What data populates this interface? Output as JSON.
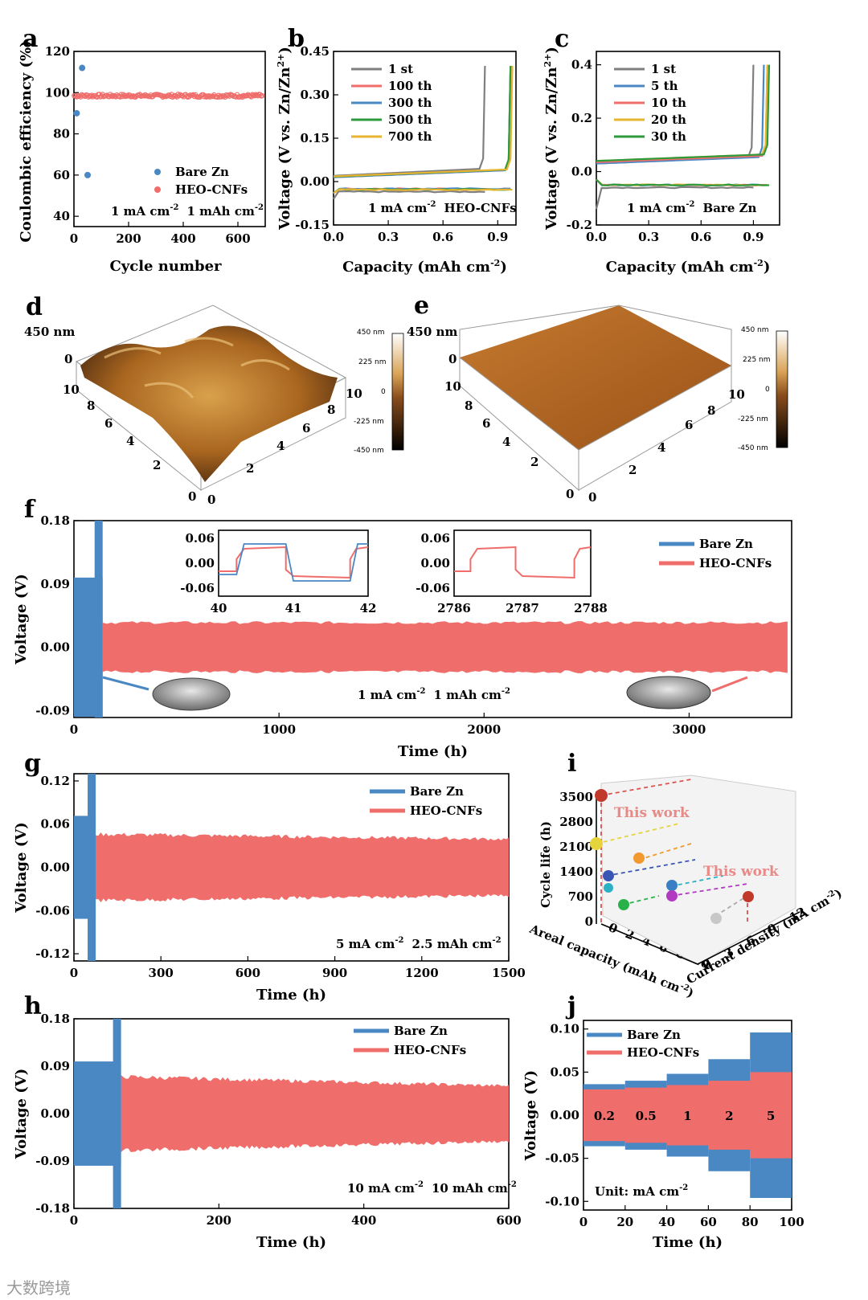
{
  "colors": {
    "bare": "#4a88c4",
    "heo": "#ef6d6a",
    "grey": "#7f7f7f",
    "green": "#2e9a3e",
    "yellow": "#e7b52f",
    "afm_dark": "#4b2a10",
    "afm_mid": "#a7642a",
    "afm_light": "#d9a356"
  },
  "panel_labels": [
    "a",
    "b",
    "c",
    "d",
    "e",
    "f",
    "g",
    "h",
    "i",
    "j"
  ],
  "legend": {
    "bare": "Bare Zn",
    "heo": "HEO-CNFs"
  },
  "chart_data": [
    {
      "id": "a",
      "type": "scatter",
      "xlabel": "Cycle number",
      "ylabel": "Coulombic efficiency (%)",
      "xlim": [
        0,
        700
      ],
      "ylim": [
        35,
        120
      ],
      "xticks": [
        "0",
        "200",
        "400",
        "600"
      ],
      "yticks": [
        "40",
        "60",
        "80",
        "100",
        "120"
      ],
      "condition": [
        "1 mA cm",
        "-2",
        "1 mAh cm",
        "-2"
      ],
      "series": [
        {
          "name": "Bare Zn",
          "points": [
            [
              10,
              90
            ],
            [
              30,
              112
            ],
            [
              50,
              60
            ]
          ]
        },
        {
          "name": "HEO-CNFs",
          "values_from": 1,
          "values_to": 690,
          "value_range": [
            97,
            99
          ]
        }
      ]
    },
    {
      "id": "b",
      "type": "line",
      "xlabel": "Capacity (mAh cm",
      "xlabel_sup": "-2",
      "xlabel_end": ")",
      "ylabel": "Voltage (V vs. Zn/Zn",
      "ylabel_sup": "2+",
      "ylabel_end": ")",
      "xlim": [
        0,
        1.0
      ],
      "ylim": [
        -0.15,
        0.45
      ],
      "xticks": [
        "0.0",
        "0.3",
        "0.6",
        "0.9"
      ],
      "yticks": [
        "-0.15",
        "0.00",
        "0.15",
        "0.30",
        "0.45"
      ],
      "annotation": [
        "1 mA cm",
        "-2",
        "HEO-CNFs"
      ],
      "series": [
        {
          "name": "1 st",
          "end": 0.83
        },
        {
          "name": "100 th",
          "end": 0.97
        },
        {
          "name": "300 th",
          "end": 0.97
        },
        {
          "name": "500 th",
          "end": 0.97
        },
        {
          "name": "700 th",
          "end": 0.98
        }
      ]
    },
    {
      "id": "c",
      "type": "line",
      "xlabel": "Capacity (mAh cm",
      "xlabel_sup": "-2",
      "xlabel_end": ")",
      "ylabel": "Voltage (V vs. Zn/Zn",
      "ylabel_sup": "2+",
      "ylabel_end": ")",
      "xlim": [
        0,
        1.05
      ],
      "ylim": [
        -0.2,
        0.45
      ],
      "xticks": [
        "0.0",
        "0.3",
        "0.6",
        "0.9"
      ],
      "yticks": [
        "-0.2",
        "0.0",
        "0.2",
        "0.4"
      ],
      "annotation": [
        "1 mA cm",
        "-2",
        "Bare Zn"
      ],
      "series": [
        {
          "name": "1 st",
          "end": 0.9
        },
        {
          "name": "5 th",
          "end": 0.96
        },
        {
          "name": "10 th",
          "end": 0.98
        },
        {
          "name": "20 th",
          "end": 0.98
        },
        {
          "name": "30 th",
          "end": 0.99
        }
      ]
    },
    {
      "id": "f",
      "type": "area",
      "xlabel": "Time (h)",
      "ylabel": "Voltage (V)",
      "xlim": [
        0,
        3500
      ],
      "ylim": [
        -0.1,
        0.18
      ],
      "xticks": [
        "0",
        "1000",
        "2000",
        "3000"
      ],
      "yticks": [
        "-0.09",
        "0.00",
        "0.09",
        "0.18"
      ],
      "condition": [
        "1 mA cm",
        "-2",
        "1 mAh cm",
        "-2"
      ],
      "inset1": {
        "xticks": [
          "40",
          "41",
          "42"
        ],
        "yticks": [
          "0.06",
          "0.00",
          "-0.06"
        ]
      },
      "inset2": {
        "xticks": [
          "2786",
          "2787",
          "2788"
        ],
        "yticks": [
          "0.06",
          "0.00",
          "-0.06"
        ]
      },
      "series": [
        {
          "name": "Bare Zn",
          "end_time": 140,
          "amplitude": 0.18
        },
        {
          "name": "HEO-CNFs",
          "end_time": 3480,
          "amplitude": 0.035
        }
      ]
    },
    {
      "id": "g",
      "type": "area",
      "xlabel": "Time (h)",
      "ylabel": "Voltage (V)",
      "xlim": [
        0,
        1500
      ],
      "ylim": [
        -0.13,
        0.13
      ],
      "xticks": [
        "0",
        "300",
        "600",
        "900",
        "1200",
        "1500"
      ],
      "yticks": [
        "0.12",
        "0.06",
        "0.00",
        "-0.06",
        "-0.12"
      ],
      "condition": [
        "5 mA cm",
        "-2",
        "2.5 mAh cm",
        "-2"
      ],
      "series": [
        {
          "name": "Bare Zn",
          "end_time": 75,
          "amplitude": 0.13
        },
        {
          "name": "HEO-CNFs",
          "end_time": 1500,
          "amplitude": 0.046
        }
      ]
    },
    {
      "id": "h",
      "type": "area",
      "xlabel": "Time (h)",
      "ylabel": "Voltage (V)",
      "xlim": [
        0,
        600
      ],
      "ylim": [
        -0.18,
        0.18
      ],
      "xticks": [
        "0",
        "200",
        "400",
        "600"
      ],
      "yticks": [
        "0.18",
        "0.09",
        "0.00",
        "-0.09",
        "-0.18"
      ],
      "condition": [
        "10 mA cm",
        "-2",
        "10 mAh cm",
        "-2"
      ],
      "series": [
        {
          "name": "Bare Zn",
          "end_time": 65,
          "amplitude": 0.18
        },
        {
          "name": "HEO-CNFs",
          "end_time": 600,
          "amplitude": 0.07
        }
      ]
    },
    {
      "id": "i",
      "type": "scatter",
      "xlabel": "Areal capacity (mAh cm",
      "xlabel_sup": "-2",
      "xlabel_end": ")",
      "ylabel": "Cycle life (h)",
      "zlabel": "Current density (mA cm",
      "zlabel_sup": "-2",
      "zlabel_end": ")",
      "yticks": [
        "0",
        "700",
        "1400",
        "2100",
        "2800",
        "3500"
      ],
      "xticks": [
        "0",
        "2",
        "4",
        "6",
        "8",
        "10"
      ],
      "zticks": [
        "0",
        "3",
        "6",
        "9",
        "12"
      ],
      "callouts": [
        "This work",
        "This work"
      ]
    },
    {
      "id": "j",
      "type": "area",
      "xlabel": "Time (h)",
      "ylabel": "Voltage (V)",
      "xlim": [
        0,
        100
      ],
      "ylim": [
        -0.11,
        0.11
      ],
      "xticks": [
        "0",
        "20",
        "40",
        "60",
        "80",
        "100"
      ],
      "yticks": [
        "0.10",
        "0.05",
        "0.00",
        "-0.05",
        "-0.10"
      ],
      "rates": [
        "0.2",
        "0.5",
        "1",
        "2",
        "5"
      ],
      "unit": [
        "Unit: mA cm",
        "-2"
      ]
    }
  ],
  "afm": {
    "d": {
      "zscale": "450 nm",
      "ticks": [
        "450 nm",
        "225 nm",
        "0",
        "-225 nm",
        "-450 nm"
      ],
      "axis_z": [
        "0"
      ],
      "axis_xy": [
        "10",
        "8",
        "6",
        "4",
        "2",
        "0",
        "0",
        "2",
        "4",
        "6",
        "8",
        "10"
      ]
    },
    "e": {
      "zscale": "450 nm",
      "ticks": [
        "450 nm",
        "225 nm",
        "0",
        "-225 nm",
        "-450 nm"
      ],
      "axis_z": [
        "0"
      ],
      "axis_xy": [
        "10",
        "8",
        "6",
        "4",
        "2",
        "0",
        "0",
        "2",
        "4",
        "6",
        "8",
        "10"
      ]
    }
  },
  "watermark": "大数跨境"
}
